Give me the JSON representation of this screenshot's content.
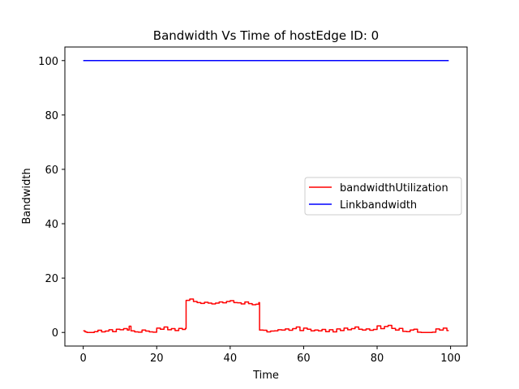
{
  "chart_data": {
    "type": "line",
    "title": "Bandwidth Vs Time of hostEdge ID: 0",
    "xlabel": "Time",
    "ylabel": "Bandwidth",
    "xlim": [
      -5,
      104.5
    ],
    "ylim": [
      -5,
      105
    ],
    "xticks": [
      0,
      20,
      40,
      60,
      80,
      100
    ],
    "yticks": [
      0,
      20,
      40,
      60,
      80,
      100
    ],
    "grid": false,
    "legend_position": "center-right",
    "series": [
      {
        "name": "bandwidthUtilization",
        "color": "#ff0000",
        "x": [
          0,
          0.5,
          1,
          2,
          3,
          4,
          5,
          6,
          7,
          8,
          9,
          10,
          11,
          12,
          12.5,
          13,
          14,
          15,
          16,
          17,
          18,
          19,
          20,
          21,
          22,
          23,
          24,
          25,
          26,
          27,
          27.8,
          28,
          29,
          30,
          31,
          32,
          33,
          34,
          35,
          36,
          37,
          38,
          39,
          40,
          41,
          42,
          43,
          44,
          45,
          46,
          47,
          47.8,
          48,
          49,
          50,
          51,
          52,
          53,
          54,
          55,
          56,
          57,
          58,
          59,
          60,
          61,
          62,
          63,
          64,
          65,
          66,
          67,
          68,
          69,
          70,
          71,
          72,
          73,
          74,
          75,
          76,
          77,
          78,
          79,
          80,
          81,
          82,
          83,
          84,
          85,
          86,
          87,
          88,
          89,
          90,
          91,
          92,
          93,
          94,
          95,
          96,
          97,
          98,
          99
        ],
        "values": [
          0.6,
          0.2,
          0,
          0,
          0.3,
          0.8,
          0.2,
          0.5,
          1.0,
          0.3,
          1.2,
          1.0,
          1.4,
          0.9,
          2.3,
          0.6,
          0.2,
          0.1,
          0.9,
          0.5,
          0.2,
          0.1,
          1.6,
          1.2,
          2.0,
          1.0,
          1.4,
          0.7,
          1.5,
          1.1,
          1.5,
          11.8,
          12.3,
          11.4,
          11.0,
          10.7,
          11.1,
          10.8,
          10.5,
          10.8,
          11.2,
          10.9,
          11.4,
          11.7,
          11.0,
          10.9,
          10.5,
          11.2,
          10.6,
          10.2,
          10.4,
          11.0,
          0.9,
          0.8,
          0.2,
          0.5,
          0.6,
          1.0,
          0.9,
          1.3,
          0.8,
          1.4,
          2.0,
          0.7,
          1.6,
          1.2,
          0.6,
          0.9,
          0.6,
          1.1,
          0.3,
          1.0,
          0.2,
          1.3,
          0.7,
          1.6,
          1.0,
          1.4,
          2.0,
          1.2,
          0.9,
          1.3,
          0.8,
          1.1,
          2.4,
          1.4,
          2.2,
          2.6,
          1.5,
          0.9,
          1.5,
          0.4,
          0.3,
          0.9,
          1.2,
          0.1,
          0,
          0,
          0,
          0.1,
          1.3,
          0.9,
          1.6,
          0.7
        ]
      },
      {
        "name": "Linkbandwidth",
        "color": "#0000ff",
        "x": [
          0,
          99.5
        ],
        "values": [
          100,
          100
        ]
      }
    ]
  }
}
